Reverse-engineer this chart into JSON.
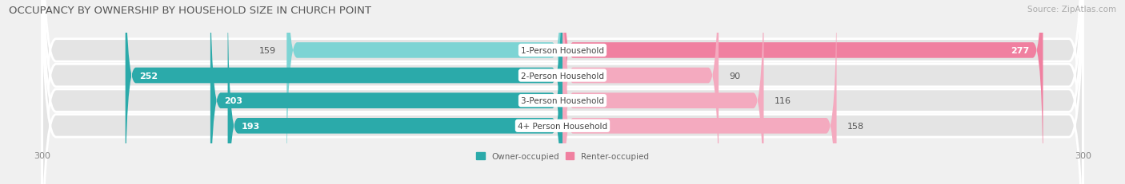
{
  "title": "OCCUPANCY BY OWNERSHIP BY HOUSEHOLD SIZE IN CHURCH POINT",
  "source": "Source: ZipAtlas.com",
  "categories": [
    "1-Person Household",
    "2-Person Household",
    "3-Person Household",
    "4+ Person Household"
  ],
  "owner_values": [
    159,
    252,
    203,
    193
  ],
  "renter_values": [
    277,
    90,
    116,
    158
  ],
  "owner_color_light": "#7DD4D4",
  "owner_color_dark": "#2BAAAA",
  "renter_color_dark": "#F080A0",
  "renter_color_light": "#F4AABF",
  "background_color": "#f0f0f0",
  "row_bg_color": "#e4e4e4",
  "axis_max": 300,
  "legend_owner": "Owner-occupied",
  "legend_renter": "Renter-occupied",
  "title_fontsize": 9.5,
  "source_fontsize": 7.5,
  "label_fontsize": 7.5,
  "value_fontsize": 8,
  "tick_fontsize": 8
}
